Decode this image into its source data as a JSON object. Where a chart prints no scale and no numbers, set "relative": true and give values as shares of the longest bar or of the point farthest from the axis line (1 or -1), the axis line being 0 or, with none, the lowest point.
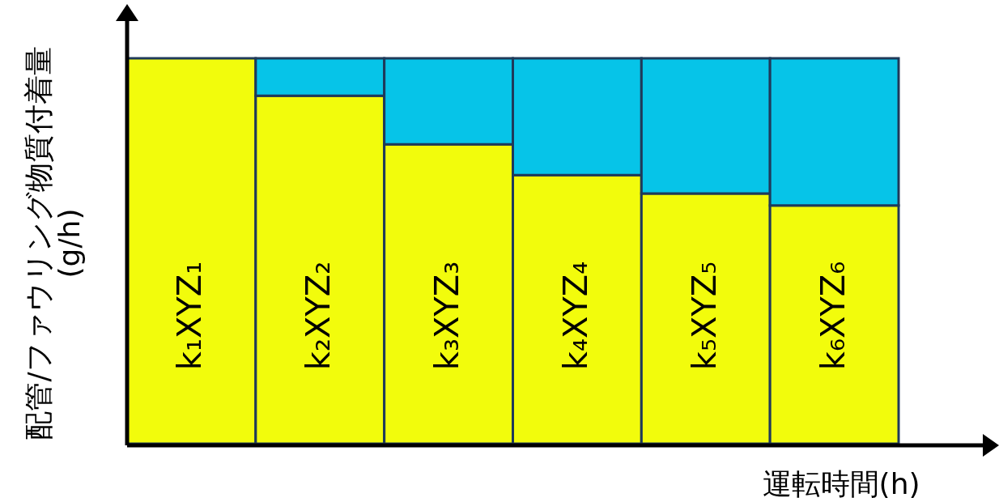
{
  "chart_data": {
    "type": "bar",
    "stacked": true,
    "relative": true,
    "xlabel": "運転時間(h)",
    "ylabel": "配管/ファウリング物質付着量\n(g/h)",
    "categories": [
      null,
      null,
      null,
      null,
      null,
      null
    ],
    "series": [
      {
        "color": "#f2fc0c",
        "values": [
          1,
          0.903,
          0.777,
          0.697,
          0.649,
          0.618
        ]
      },
      {
        "color": "#06c4e8",
        "values": [
          null,
          0.097,
          0.223,
          0.303,
          0.351,
          0.382
        ]
      }
    ],
    "annotations": [
      "k₁XYZ₁",
      "k₂XYZ₂",
      "k₃XYZ₃",
      "k₄XYZ₄",
      "k₅XYZ₅",
      "k₆XYZ₆"
    ]
  }
}
